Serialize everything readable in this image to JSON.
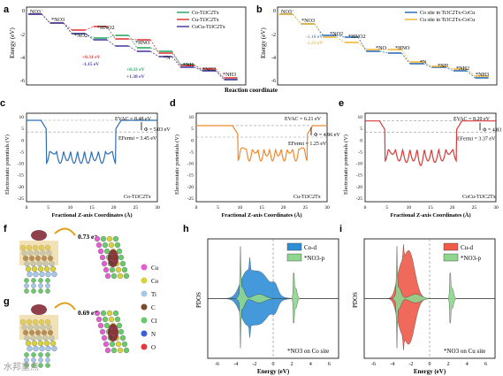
{
  "panels": {
    "a": {
      "label": "a",
      "ylabel": "Energy (eV)",
      "xlabel": "Reaction coordinate",
      "ticks": [
        "0",
        "-2",
        "-4",
        "-6"
      ],
      "states": [
        "NO3⁻",
        "*NO3",
        "*NO2",
        "*HNO2",
        "*NO",
        "*HNO",
        "*N",
        "*NH",
        "*NH2",
        "*NH3"
      ],
      "legend": [
        "Co-Ti3C2Tx",
        "Cu-Ti3C2Tx",
        "CoCu-Ti3C2Tx"
      ],
      "annotations": [
        "+0.31 eV",
        "-1.15 eV",
        "+0.33 eV",
        "+1.38 eV"
      ]
    },
    "b": {
      "label": "b",
      "ylabel": "Energy (eV)",
      "xlabel": "Reaction coordinate",
      "ticks": [
        "0",
        "-2",
        "-4",
        "-6"
      ],
      "states": [
        "NO3⁻",
        "*NO3",
        "*NO2",
        "*HNO2",
        "*NO",
        "*HNO",
        "*N",
        "*NH",
        "*NH2",
        "*NH3"
      ],
      "legend": [
        "Co site in Ti3C2Tx-CoCu",
        "Cu site in Ti3C2Tx-CoCu"
      ],
      "annotations": [
        "-1.18 eV",
        "-1.23 eV"
      ]
    },
    "c": {
      "label": "c",
      "ylabel": "Electrostatic potentials (V)",
      "xlabel": "Fractional Z-axis Coordinates (Å)",
      "yticks": [
        "10",
        "5",
        "0",
        "-5",
        "-10",
        "-15",
        "-20",
        "-25"
      ],
      "xticks": [
        "0",
        "5",
        "10",
        "15",
        "20",
        "25",
        "30"
      ],
      "evac": "EVAC = 8.48 eV",
      "phi": "Φ = 5.03 eV",
      "efermi": "EFermi = 3.45 eV",
      "name": "Co-Ti3C2Tx"
    },
    "d": {
      "label": "d",
      "ylabel": "Electrostatic potentials (V)",
      "xlabel": "Fractional Z-axis Coordinates (Å)",
      "yticks": [
        "10",
        "5",
        "0",
        "-5",
        "-10",
        "-15",
        "-20",
        "-25"
      ],
      "xticks": [
        "0",
        "5",
        "10",
        "15",
        "20",
        "25",
        "30"
      ],
      "evac": "EVAC = 6.21 eV",
      "phi": "Φ = 4.96 eV",
      "efermi": "EFermi = 1.25 eV",
      "name": "Cu-Ti3C2Tx"
    },
    "e": {
      "label": "e",
      "ylabel": "Electrostatic potentials (V)",
      "xlabel": "Fractional Z-axis Coordinates (Å)",
      "yticks": [
        "10",
        "5",
        "0",
        "-5",
        "-10",
        "-15",
        "-20",
        "-25"
      ],
      "xticks": [
        "0",
        "5",
        "10",
        "15",
        "20",
        "25",
        "30"
      ],
      "evac": "EVAC = 8.20 eV",
      "phi": "Φ = 4.83 eV",
      "efermi": "EFermi = 3.37 eV",
      "name": "CoCu-Ti3C2Tx"
    },
    "f": {
      "label": "f",
      "charge": "0.73 e⁻"
    },
    "g": {
      "label": "g",
      "charge": "0.69 e⁻"
    },
    "legend_atoms": [
      "Cu",
      "Co",
      "Ti",
      "C",
      "Cl",
      "N",
      "O"
    ],
    "h": {
      "label": "h",
      "ylabel": "PDOS",
      "xlabel": "Energy (eV)",
      "xticks": [
        "-6",
        "-4",
        "-2",
        "0",
        "2",
        "4",
        "6"
      ],
      "legend": [
        "Co-d",
        "*NO3-p"
      ],
      "caption": "*NO3 on Co site"
    },
    "i": {
      "label": "i",
      "ylabel": "PDOS",
      "xlabel": "Energy (eV)",
      "xticks": [
        "-6",
        "-4",
        "-2",
        "0",
        "2",
        "4",
        "6"
      ],
      "legend": [
        "Cu-d",
        "*NO3-p"
      ],
      "caption": "*NO3 on Cu site"
    }
  },
  "colors": {
    "co": "#2aa866",
    "cu": "#e13b3b",
    "cocu": "#4b3fa6",
    "blue": "#2f6eb5",
    "orange": "#ef8a2c",
    "red": "#d93a3a",
    "pdos_co": "#2f8fd6",
    "pdos_cu": "#ef5a4a",
    "pdos_no3": "#8fd68f"
  },
  "watermark": "水邦重点"
}
